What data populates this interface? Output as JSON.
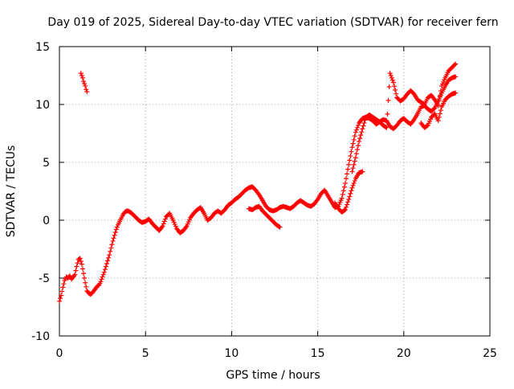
{
  "chart_data": {
    "type": "scatter",
    "title": "Day 019 of 2025, Sidereal Day-to-day VTEC variation (SDTVAR) for receiver fern",
    "xlabel": "GPS time / hours",
    "ylabel": "SDTVAR / TECUs",
    "xlim": [
      0,
      25
    ],
    "ylim": [
      -10,
      15
    ],
    "xticks": [
      0,
      5,
      10,
      15,
      20,
      25
    ],
    "yticks": [
      -10,
      -5,
      0,
      5,
      10,
      15
    ],
    "xtick_labels": [
      "0",
      "5",
      "10",
      "15",
      "20",
      "25"
    ],
    "ytick_labels": [
      "-10",
      "-5",
      "0",
      "5",
      "10",
      "15"
    ],
    "grid": true,
    "marker": "+",
    "colors": {
      "series": "#ff0000",
      "grid": "#a0a0a0",
      "axis": "#000000"
    },
    "series": [
      {
        "name": "sdtvar-main",
        "x": [
          0.0,
          0.1,
          0.2,
          0.3,
          0.4,
          0.5,
          0.6,
          0.7,
          0.8,
          0.9,
          1.0,
          1.1,
          1.2,
          1.3,
          1.4,
          1.5,
          1.6,
          1.7,
          1.8,
          1.9,
          2.0,
          2.1,
          2.2,
          2.3,
          2.4,
          2.5,
          2.6,
          2.7,
          2.8,
          2.9,
          3.0,
          3.1,
          3.2,
          3.3,
          3.4,
          3.5,
          3.6,
          3.7,
          3.8,
          3.9,
          4.0,
          4.2,
          4.4,
          4.6,
          4.8,
          5.0,
          5.2,
          5.4,
          5.6,
          5.8,
          6.0,
          6.2,
          6.4,
          6.6,
          6.8,
          7.0,
          7.2,
          7.4,
          7.6,
          7.8,
          8.0,
          8.2,
          8.4,
          8.6,
          8.8,
          9.0,
          9.2,
          9.4,
          9.6,
          9.8,
          10.0,
          10.2,
          10.4,
          10.6,
          10.8,
          11.0,
          11.2,
          11.4,
          11.6,
          11.8,
          12.0,
          12.2,
          12.4,
          12.6,
          12.8,
          13.0,
          13.2,
          13.4,
          13.6,
          13.8,
          14.0,
          14.2,
          14.4,
          14.6,
          14.8,
          15.0,
          15.2,
          15.4,
          15.6,
          15.8,
          16.0,
          16.2,
          16.4,
          16.6,
          16.8,
          17.0,
          17.2,
          17.4,
          17.6,
          17.8,
          18.0,
          18.2,
          18.4,
          18.6,
          18.8,
          19.0,
          19.2,
          19.4,
          19.6,
          19.8,
          20.0,
          20.2,
          20.4,
          20.6,
          20.8,
          21.0,
          21.2,
          21.4,
          21.6,
          21.8,
          22.0,
          22.2,
          22.4,
          22.6,
          22.8,
          23.0
        ],
        "y": [
          -7.0,
          -6.5,
          -5.8,
          -5.2,
          -4.9,
          -5.0,
          -4.8,
          -5.1,
          -4.9,
          -4.7,
          -4.0,
          -3.4,
          -3.3,
          -3.8,
          -4.6,
          -5.4,
          -6.1,
          -6.3,
          -6.4,
          -6.3,
          -6.1,
          -5.9,
          -5.7,
          -5.6,
          -5.3,
          -4.9,
          -4.5,
          -4.0,
          -3.5,
          -3.0,
          -2.4,
          -1.8,
          -1.3,
          -0.8,
          -0.4,
          -0.1,
          0.2,
          0.5,
          0.7,
          0.8,
          0.8,
          0.6,
          0.3,
          0.0,
          -0.2,
          -0.1,
          0.1,
          -0.3,
          -0.6,
          -0.9,
          -0.5,
          0.3,
          0.6,
          0.0,
          -0.7,
          -1.1,
          -0.9,
          -0.5,
          0.2,
          0.6,
          0.9,
          1.1,
          0.6,
          0.0,
          0.2,
          0.6,
          0.8,
          0.6,
          0.9,
          1.3,
          1.5,
          1.8,
          2.0,
          2.3,
          2.6,
          2.8,
          2.9,
          2.6,
          2.2,
          1.7,
          1.2,
          0.9,
          0.8,
          0.9,
          1.1,
          1.2,
          1.1,
          1.0,
          1.2,
          1.5,
          1.7,
          1.5,
          1.3,
          1.2,
          1.4,
          1.8,
          2.3,
          2.6,
          2.1,
          1.6,
          1.1,
          1.2,
          1.9,
          3.2,
          4.8,
          6.3,
          7.6,
          8.4,
          8.8,
          8.9,
          8.8,
          8.6,
          8.3,
          8.5,
          8.7,
          8.6,
          8.1,
          7.9,
          8.2,
          8.6,
          8.8,
          8.5,
          8.3,
          8.7,
          9.2,
          9.8,
          9.9,
          9.6,
          9.4,
          9.7,
          10.3,
          11.0,
          11.6,
          12.1,
          12.3,
          12.4
        ]
      },
      {
        "name": "sdtvar-upper-branch",
        "x": [
          17.0,
          17.2,
          17.4,
          17.6,
          17.8,
          18.0,
          18.2,
          18.4,
          18.6,
          18.8,
          19.0,
          19.2,
          19.4,
          19.6,
          19.8,
          20.0,
          20.2,
          20.4,
          20.6,
          20.8,
          21.0,
          21.2,
          21.4,
          21.6,
          21.8,
          22.0,
          22.2,
          22.4,
          22.6,
          22.8,
          23.0
        ],
        "y": [
          4.2,
          5.4,
          6.8,
          7.9,
          8.9,
          9.1,
          8.9,
          8.7,
          8.5,
          8.2,
          8.0,
          12.7,
          11.9,
          10.6,
          10.3,
          10.5,
          10.9,
          11.2,
          10.9,
          10.4,
          10.2,
          10.0,
          10.6,
          10.8,
          10.4,
          9.9,
          11.6,
          12.3,
          12.9,
          13.2,
          13.5
        ]
      },
      {
        "name": "sdtvar-lower-branch",
        "x": [
          11.0,
          11.2,
          11.4,
          11.6,
          11.8,
          12.0,
          12.2,
          12.4,
          12.6,
          12.8,
          16.0,
          16.2,
          16.4,
          16.6,
          16.8,
          17.0,
          17.2,
          17.4,
          17.6,
          21.0,
          21.2,
          21.4,
          21.6,
          21.8,
          22.0,
          22.2,
          22.4,
          22.6,
          22.8,
          23.0
        ],
        "y": [
          1.0,
          0.9,
          1.1,
          1.2,
          0.8,
          0.5,
          0.2,
          -0.1,
          -0.4,
          -0.6,
          1.5,
          1.0,
          0.7,
          0.9,
          1.8,
          2.8,
          3.6,
          4.1,
          4.2,
          8.4,
          8.0,
          8.2,
          8.9,
          9.2,
          8.6,
          9.8,
          10.4,
          10.7,
          10.9,
          11.0
        ]
      },
      {
        "name": "sdtvar-early-segment",
        "x": [
          1.25,
          1.3,
          1.35,
          1.4,
          1.45,
          1.5,
          1.55,
          1.6
        ],
        "y": [
          12.7,
          12.5,
          12.3,
          12.0,
          11.8,
          11.6,
          11.3,
          11.1
        ]
      }
    ]
  }
}
